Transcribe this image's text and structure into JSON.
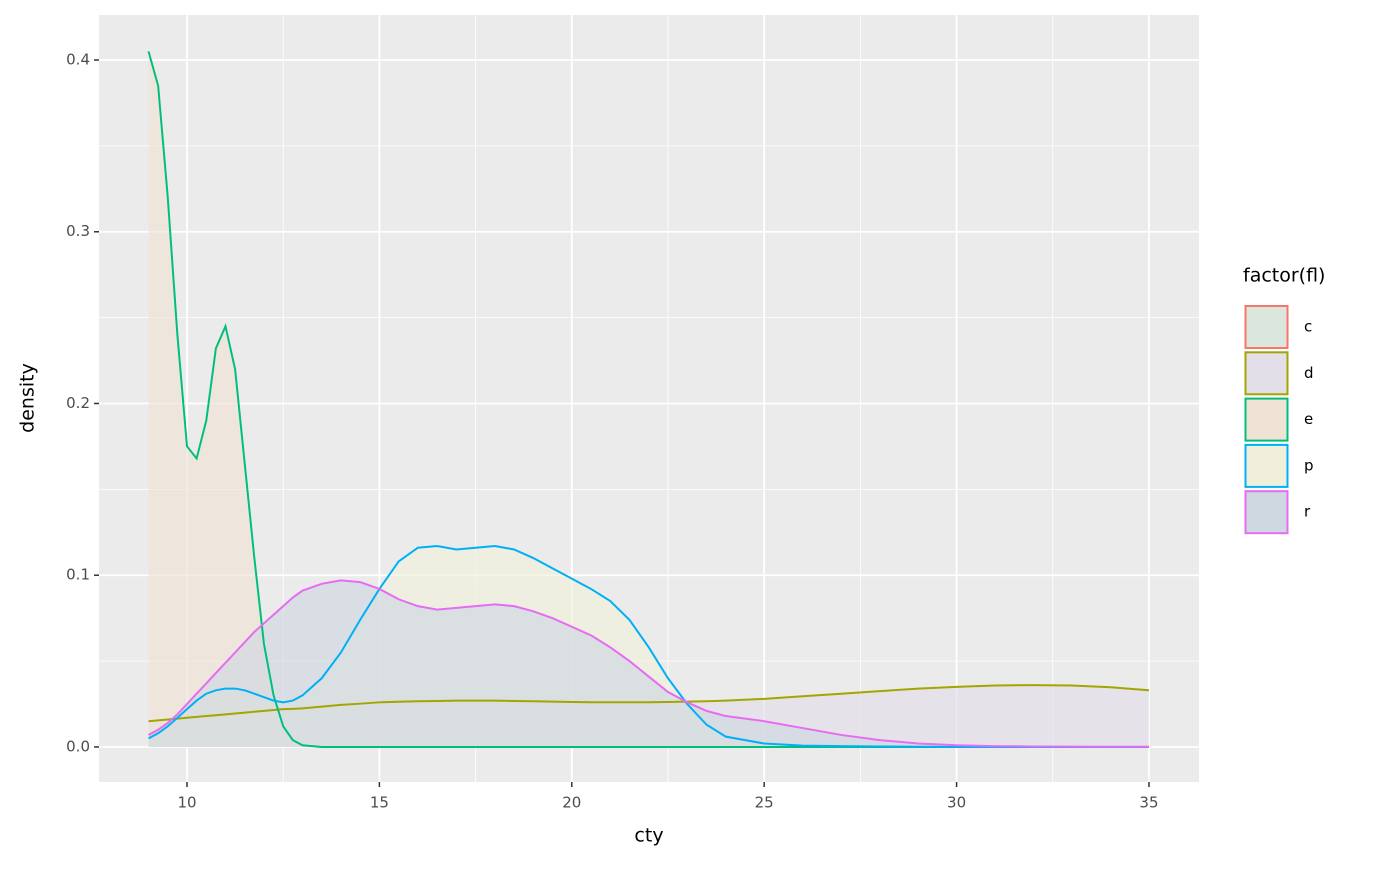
{
  "chart_data": {
    "type": "density",
    "x_label": "cty",
    "y_label": "density",
    "legend_title": "factor(fl)",
    "legend_position": "right",
    "grid": true,
    "xlim": [
      7.713,
      36.3
    ],
    "xticks": [
      10,
      15,
      20,
      25,
      30,
      35
    ],
    "x_minor_ticks": [
      12.5,
      17.5,
      22.5,
      27.5,
      32.5
    ],
    "ylim": [
      -0.0204,
      0.4262
    ],
    "yticks": [
      {
        "value": 0,
        "label": "0.0"
      },
      0.1,
      0.2,
      0.3,
      0.4
    ],
    "y_minor_ticks": [
      0.05,
      0.15,
      0.25,
      0.35
    ],
    "x": [
      9,
      9.25,
      9.5,
      9.75,
      10,
      10.25,
      10.5,
      10.75,
      11,
      11.25,
      11.5,
      11.75,
      12,
      12.25,
      12.5,
      12.75,
      13,
      13.5,
      14,
      14.5,
      15,
      15.5,
      16,
      16.5,
      17,
      17.5,
      18,
      18.5,
      19,
      19.5,
      20,
      20.5,
      21,
      21.5,
      22,
      22.5,
      23,
      23.5,
      24,
      25,
      26,
      27,
      28,
      29,
      30,
      31,
      32,
      33,
      34,
      35
    ],
    "series": [
      {
        "name": "c",
        "color": "#f8766d",
        "fill": "#dbe6dd",
        "values": [
          null,
          null,
          null,
          null,
          null,
          null,
          null,
          null,
          null,
          null,
          null,
          null,
          null,
          null,
          null,
          null,
          null,
          null,
          null,
          null,
          null,
          null,
          null,
          null,
          null,
          null,
          null,
          null,
          null,
          null,
          null,
          null,
          null,
          null,
          null,
          null,
          null,
          null,
          null,
          null,
          null,
          null,
          null,
          null,
          null,
          null,
          null,
          null,
          null,
          null
        ]
      },
      {
        "name": "d",
        "color": "#a3a500",
        "fill": "#e2dfe8",
        "values": [
          0.015,
          0.0155,
          0.016,
          0.0165,
          0.017,
          0.0175,
          0.018,
          0.0185,
          0.019,
          0.0195,
          0.02,
          0.0205,
          0.021,
          0.0215,
          0.022,
          0.0222,
          0.0225,
          0.0235,
          0.0245,
          0.0252,
          0.026,
          0.0263,
          0.0266,
          0.0268,
          0.027,
          0.027,
          0.027,
          0.0268,
          0.0266,
          0.0264,
          0.0262,
          0.026,
          0.026,
          0.026,
          0.026,
          0.0262,
          0.0264,
          0.0266,
          0.027,
          0.028,
          0.0295,
          0.031,
          0.0325,
          0.034,
          0.035,
          0.0358,
          0.036,
          0.0358,
          0.0348,
          0.033
        ]
      },
      {
        "name": "e",
        "color": "#00bf7d",
        "fill": "#efe3d6",
        "values": [
          0.405,
          0.385,
          0.32,
          0.24,
          0.175,
          0.168,
          0.19,
          0.232,
          0.245,
          0.22,
          0.165,
          0.11,
          0.06,
          0.03,
          0.012,
          0.004,
          0.001,
          0,
          0,
          0,
          0,
          0,
          0,
          0,
          0,
          0,
          0,
          0,
          0,
          0,
          0,
          0,
          0,
          0,
          0,
          0,
          0,
          0,
          0,
          0,
          0,
          0,
          0,
          0,
          0,
          0,
          0,
          0,
          0,
          0
        ]
      },
      {
        "name": "p",
        "color": "#00b0f6",
        "fill": "#f0efdc",
        "values": [
          0.005,
          0.008,
          0.012,
          0.017,
          0.022,
          0.027,
          0.031,
          0.033,
          0.034,
          0.034,
          0.033,
          0.031,
          0.029,
          0.027,
          0.026,
          0.027,
          0.03,
          0.04,
          0.055,
          0.074,
          0.092,
          0.108,
          0.116,
          0.117,
          0.115,
          0.116,
          0.117,
          0.115,
          0.11,
          0.104,
          0.098,
          0.092,
          0.085,
          0.074,
          0.058,
          0.04,
          0.025,
          0.013,
          0.006,
          0.002,
          0.0008,
          0.0005,
          0.0003,
          0.0001,
          0,
          0,
          0,
          0,
          0,
          0
        ]
      },
      {
        "name": "r",
        "color": "#e76bf3",
        "fill": "#cfd7e0",
        "values": [
          0.007,
          0.01,
          0.014,
          0.019,
          0.025,
          0.031,
          0.037,
          0.043,
          0.049,
          0.055,
          0.061,
          0.067,
          0.072,
          0.077,
          0.082,
          0.087,
          0.091,
          0.095,
          0.097,
          0.096,
          0.092,
          0.086,
          0.082,
          0.08,
          0.081,
          0.082,
          0.083,
          0.082,
          0.079,
          0.075,
          0.07,
          0.065,
          0.058,
          0.05,
          0.041,
          0.032,
          0.026,
          0.021,
          0.018,
          0.015,
          0.011,
          0.007,
          0.004,
          0.002,
          0.001,
          0.0005,
          0.0003,
          0.0002,
          0.0001,
          0.0001
        ]
      }
    ]
  }
}
